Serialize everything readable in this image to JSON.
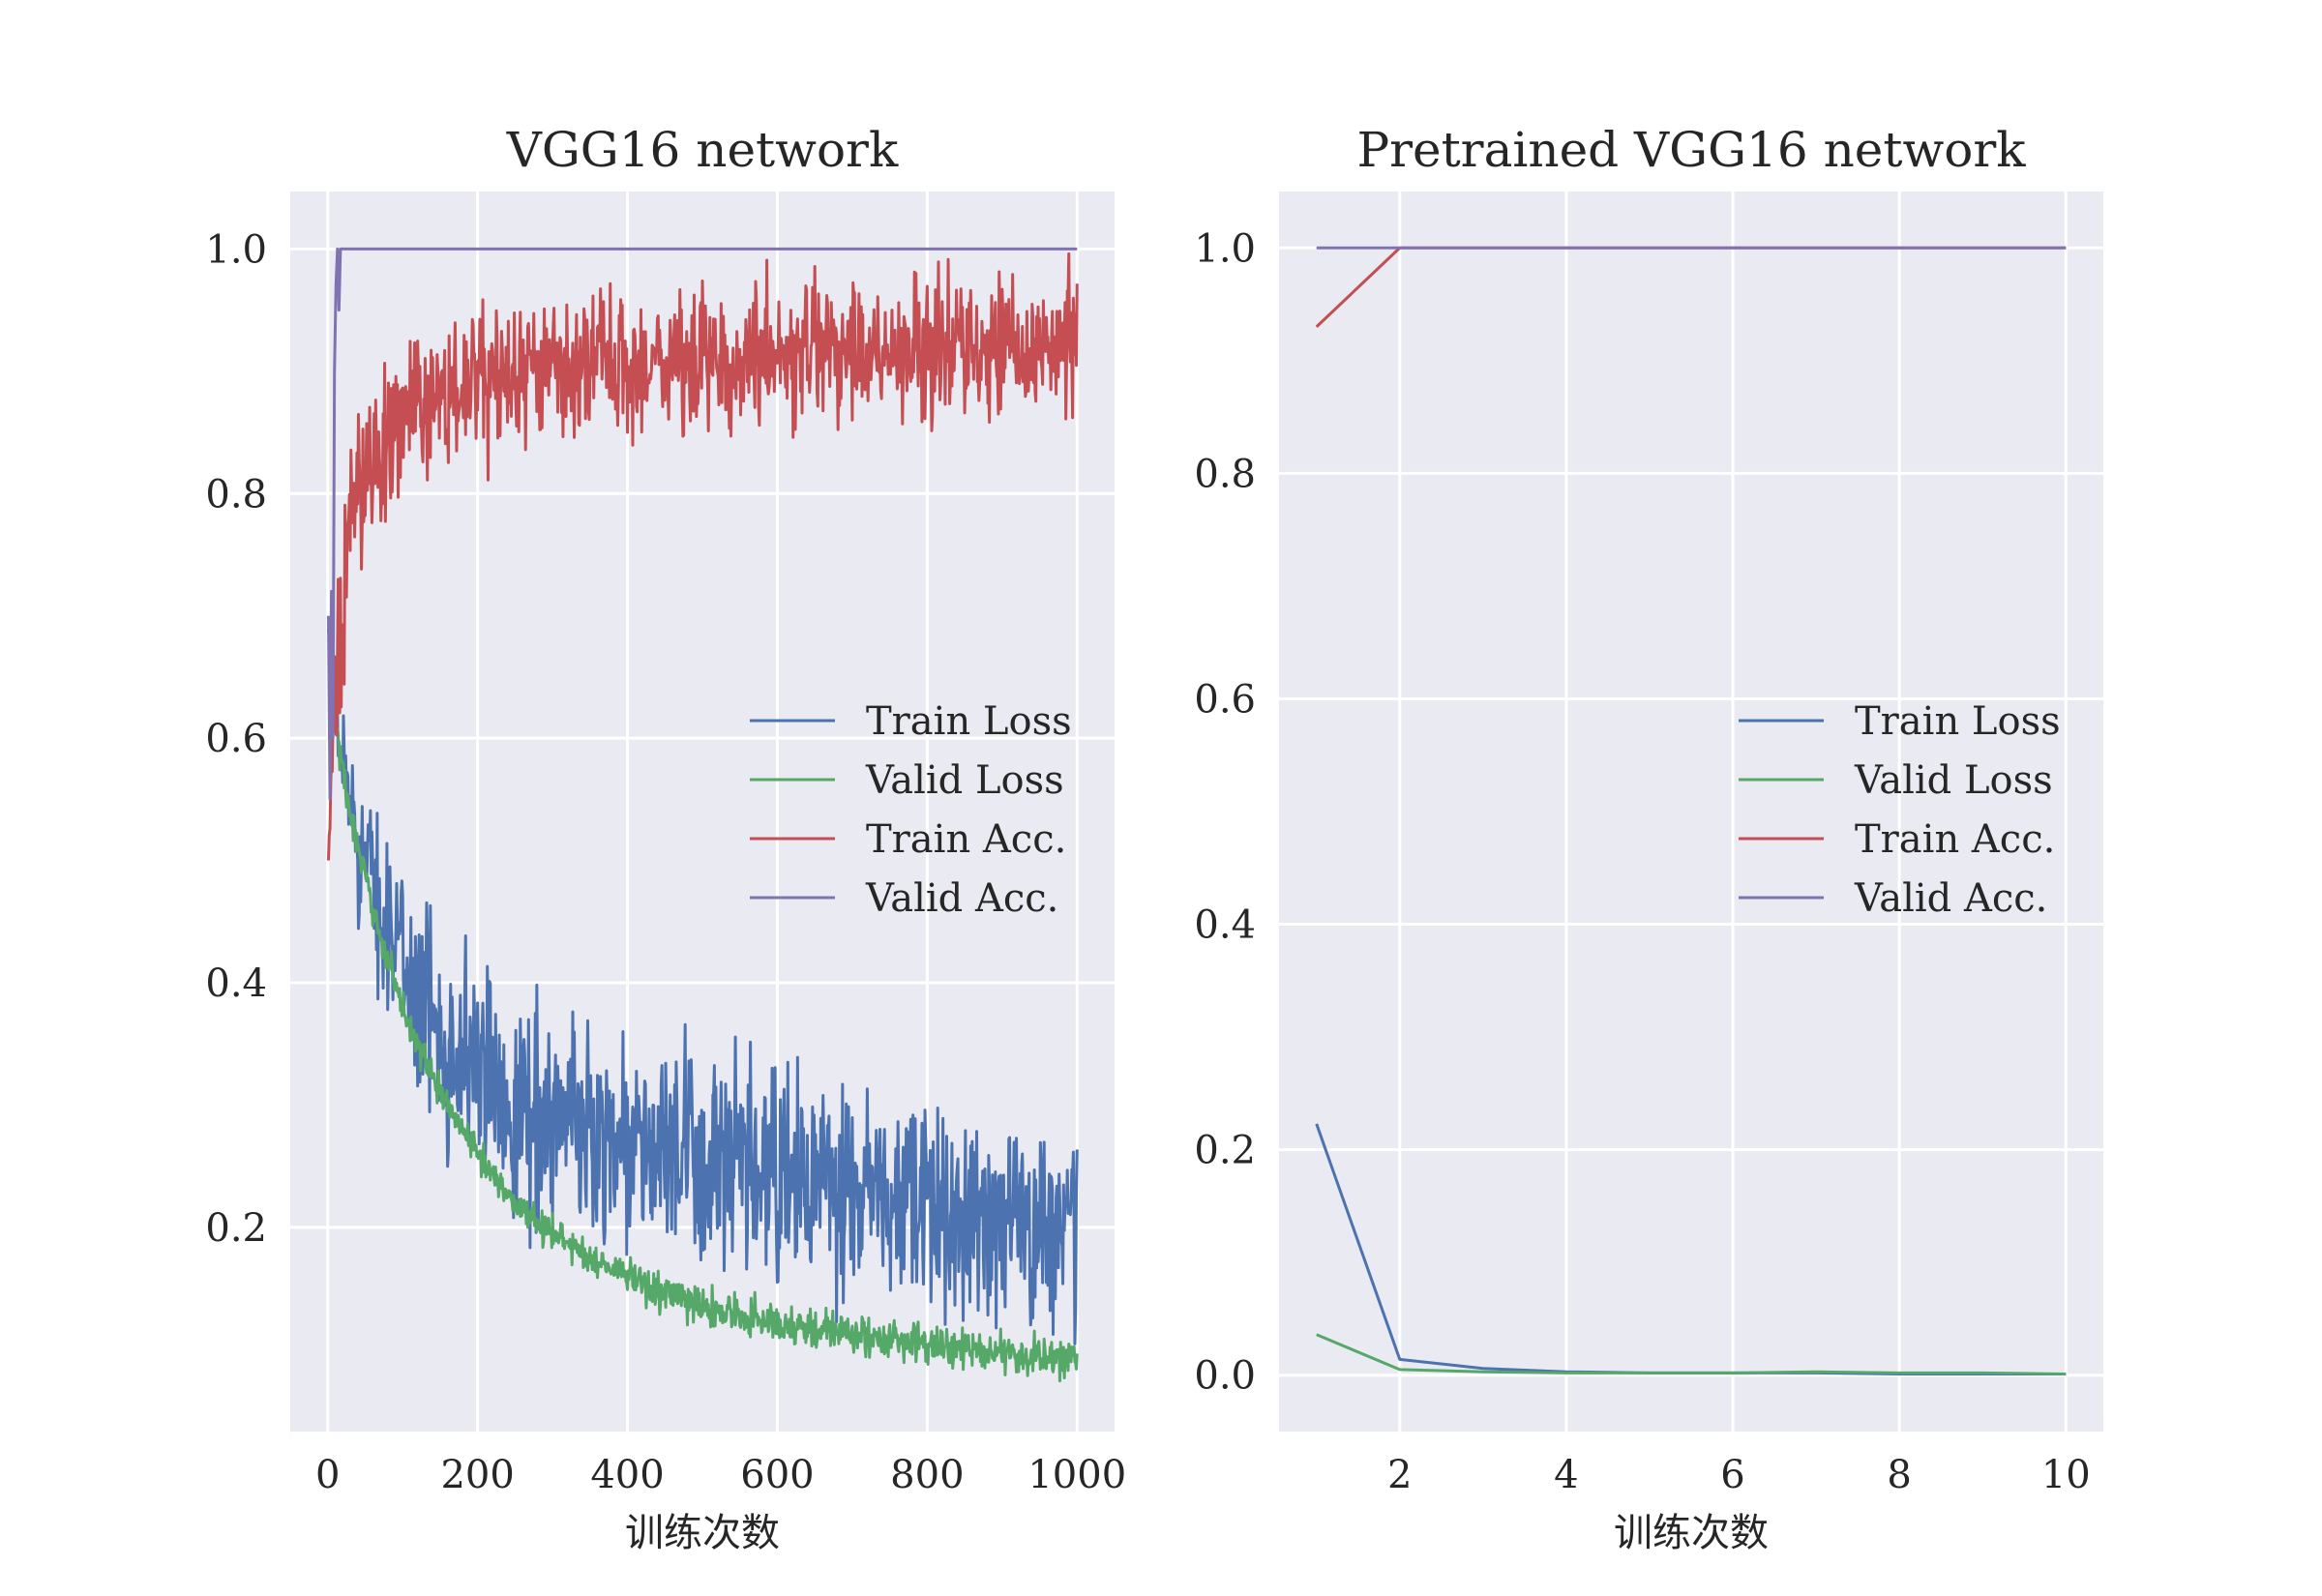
{
  "chart_data": [
    {
      "type": "line",
      "title": "VGG16 network",
      "xlabel": "训练次数",
      "ylabel": "",
      "xlim": [
        -50,
        1050
      ],
      "ylim": [
        0.033,
        1.047
      ],
      "xticks": [
        0,
        200,
        400,
        600,
        800,
        1000
      ],
      "xtick_labels": [
        "0",
        "200",
        "400",
        "600",
        "800",
        "1000"
      ],
      "yticks": [
        0.2,
        0.4,
        0.6,
        0.8,
        1.0
      ],
      "ytick_labels": [
        "0.2",
        "0.4",
        "0.6",
        "0.8",
        "1.0"
      ],
      "grid": true,
      "legend": "center-right",
      "series": [
        {
          "name": "Train Loss",
          "color": "#4c72b0",
          "style": "noisy",
          "x": [
            1,
            10,
            20,
            30,
            40,
            60,
            80,
            100,
            120,
            150,
            200,
            250,
            300,
            350,
            400,
            450,
            500,
            550,
            600,
            650,
            700,
            750,
            800,
            850,
            900,
            950,
            1000
          ],
          "y": [
            0.69,
            0.62,
            0.58,
            0.55,
            0.52,
            0.48,
            0.45,
            0.42,
            0.39,
            0.36,
            0.33,
            0.3,
            0.29,
            0.28,
            0.27,
            0.26,
            0.25,
            0.245,
            0.24,
            0.235,
            0.225,
            0.22,
            0.215,
            0.21,
            0.21,
            0.205,
            0.205
          ],
          "noise": [
            0.0,
            0.02,
            0.025,
            0.025,
            0.03,
            0.03,
            0.032,
            0.035,
            0.038,
            0.04,
            0.042,
            0.043,
            0.043,
            0.043,
            0.043,
            0.043,
            0.043,
            0.043,
            0.043,
            0.043,
            0.043,
            0.043,
            0.043,
            0.043,
            0.043,
            0.043,
            0.043
          ]
        },
        {
          "name": "Valid Loss",
          "color": "#55a868",
          "style": "noisy",
          "x": [
            1,
            10,
            20,
            30,
            40,
            60,
            80,
            100,
            120,
            150,
            200,
            250,
            300,
            350,
            400,
            450,
            500,
            550,
            600,
            650,
            700,
            750,
            800,
            850,
            900,
            950,
            1000
          ],
          "y": [
            0.69,
            0.62,
            0.57,
            0.54,
            0.51,
            0.46,
            0.42,
            0.38,
            0.35,
            0.31,
            0.26,
            0.22,
            0.195,
            0.175,
            0.16,
            0.145,
            0.135,
            0.128,
            0.122,
            0.117,
            0.113,
            0.108,
            0.104,
            0.1,
            0.097,
            0.094,
            0.092
          ],
          "noise": [
            0.0,
            0.008,
            0.008,
            0.007,
            0.007,
            0.006,
            0.006,
            0.006,
            0.006,
            0.006,
            0.006,
            0.006,
            0.007,
            0.007,
            0.007,
            0.008,
            0.008,
            0.008,
            0.008,
            0.008,
            0.008,
            0.008,
            0.008,
            0.008,
            0.008,
            0.008,
            0.008
          ]
        },
        {
          "name": "Train Acc.",
          "color": "#c44e52",
          "style": "noisy",
          "x": [
            1,
            10,
            20,
            30,
            40,
            60,
            80,
            100,
            120,
            150,
            200,
            300,
            400,
            500,
            600,
            700,
            800,
            900,
            1000
          ],
          "y": [
            0.5,
            0.62,
            0.72,
            0.77,
            0.8,
            0.83,
            0.85,
            0.86,
            0.87,
            0.88,
            0.89,
            0.9,
            0.905,
            0.91,
            0.915,
            0.915,
            0.92,
            0.92,
            0.92
          ],
          "noise": [
            0.0,
            0.05,
            0.05,
            0.04,
            0.035,
            0.03,
            0.03,
            0.03,
            0.028,
            0.028,
            0.028,
            0.028,
            0.028,
            0.028,
            0.028,
            0.028,
            0.028,
            0.028,
            0.028
          ]
        },
        {
          "name": "Valid Acc.",
          "color": "#8172b2",
          "style": "line",
          "x": [
            1,
            3,
            5,
            7,
            9,
            11,
            13,
            15,
            17,
            20,
            1000
          ],
          "y": [
            0.7,
            0.55,
            0.72,
            0.6,
            0.9,
            0.97,
            1.0,
            0.95,
            1.0,
            1.0,
            1.0
          ]
        }
      ]
    },
    {
      "type": "line",
      "title": "Pretrained VGG16 network",
      "xlabel": "训练次数",
      "ylabel": "",
      "xlim": [
        0.55,
        10.45
      ],
      "ylim": [
        -0.05,
        1.05
      ],
      "xticks": [
        2,
        4,
        6,
        8,
        10
      ],
      "xtick_labels": [
        "2",
        "4",
        "6",
        "8",
        "10"
      ],
      "yticks": [
        0.0,
        0.2,
        0.4,
        0.6,
        0.8,
        1.0
      ],
      "ytick_labels": [
        "0.0",
        "0.2",
        "0.4",
        "0.6",
        "0.8",
        "1.0"
      ],
      "grid": true,
      "legend": "center-right",
      "series": [
        {
          "name": "Train Loss",
          "color": "#4c72b0",
          "style": "line",
          "x": [
            1,
            2,
            3,
            4,
            5,
            6,
            7,
            8,
            9,
            10
          ],
          "y": [
            0.223,
            0.014,
            0.006,
            0.003,
            0.002,
            0.002,
            0.002,
            0.001,
            0.001,
            0.001
          ]
        },
        {
          "name": "Valid Loss",
          "color": "#55a868",
          "style": "line",
          "x": [
            1,
            2,
            3,
            4,
            5,
            6,
            7,
            8,
            9,
            10
          ],
          "y": [
            0.036,
            0.005,
            0.003,
            0.002,
            0.002,
            0.002,
            0.003,
            0.002,
            0.002,
            0.001
          ]
        },
        {
          "name": "Train Acc.",
          "color": "#c44e52",
          "style": "line",
          "x": [
            1,
            2,
            3,
            4,
            5,
            6,
            7,
            8,
            9,
            10
          ],
          "y": [
            0.93,
            1.0,
            1.0,
            1.0,
            1.0,
            1.0,
            1.0,
            1.0,
            1.0,
            1.0
          ]
        },
        {
          "name": "Valid Acc.",
          "color": "#8172b2",
          "style": "line",
          "x": [
            1,
            2,
            3,
            4,
            5,
            6,
            7,
            8,
            9,
            10
          ],
          "y": [
            1.0,
            1.0,
            1.0,
            1.0,
            1.0,
            1.0,
            1.0,
            1.0,
            1.0,
            1.0
          ]
        }
      ]
    }
  ]
}
